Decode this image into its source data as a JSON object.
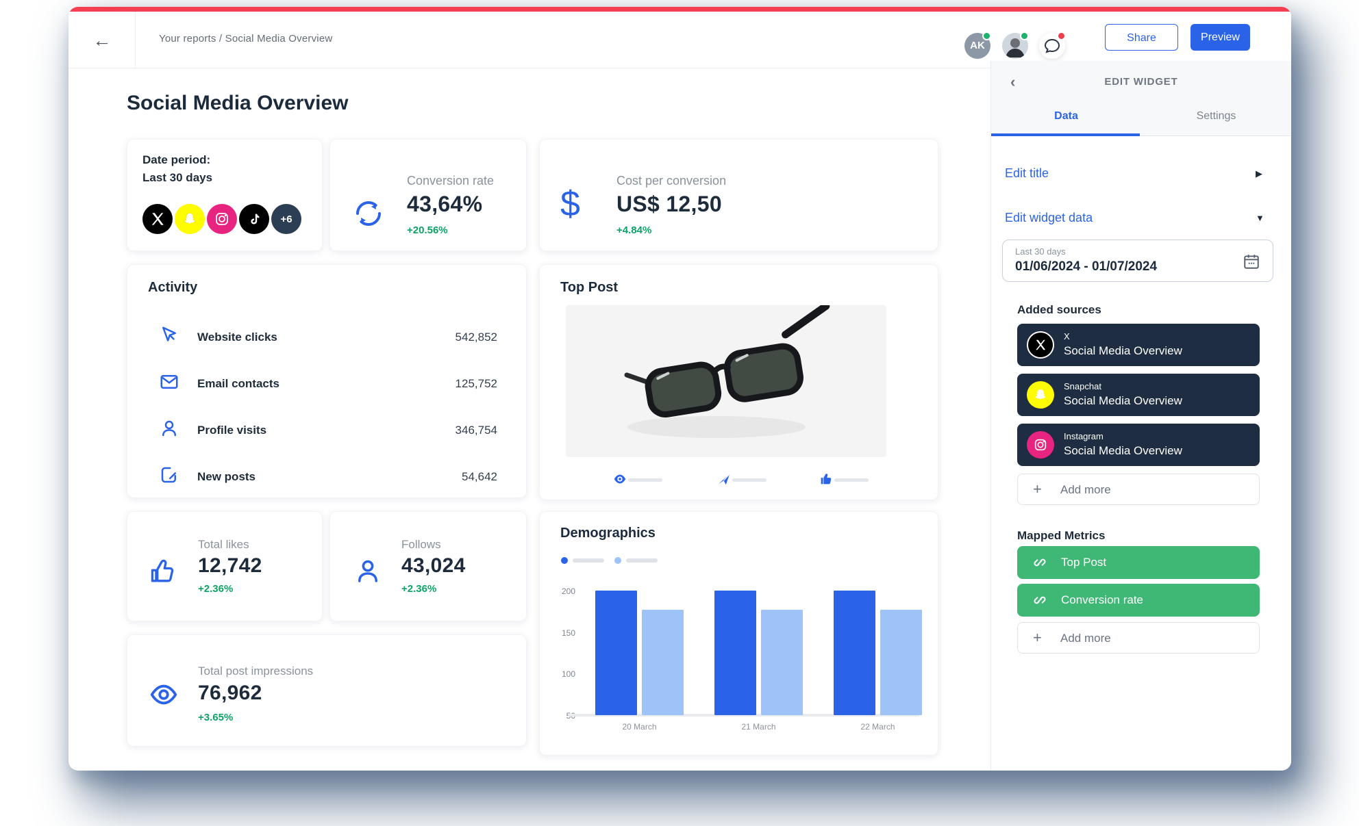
{
  "topbar": {
    "breadcrumb": "Your reports / Social Media Overview",
    "avatar_initials": "AK",
    "share_label": "Share",
    "preview_label": "Preview"
  },
  "report": {
    "title": "Social Media Overview"
  },
  "widgets": {
    "date_period": {
      "label": "Date period:",
      "value": "Last 30 days",
      "more_badge": "+6",
      "source_icons": [
        "x-icon",
        "snapchat-icon",
        "instagram-icon",
        "tiktok-icon"
      ]
    },
    "conversion_rate": {
      "label": "Conversion rate",
      "value": "43,64%",
      "change": "+20.56%"
    },
    "cost_per_conversion": {
      "label": "Cost per conversion",
      "value": "US$ 12,50",
      "change": "+4.84%"
    },
    "activity": {
      "title": "Activity",
      "rows": [
        {
          "label": "Website clicks",
          "value": "542,852"
        },
        {
          "label": "Email contacts",
          "value": "125,752"
        },
        {
          "label": "Profile visits",
          "value": "346,754"
        },
        {
          "label": "New posts",
          "value": "54,642"
        }
      ]
    },
    "top_post": {
      "title": "Top Post"
    },
    "total_likes": {
      "label": "Total likes",
      "value": "12,742",
      "change": "+2.36%"
    },
    "follows": {
      "label": "Follows",
      "value": "43,024",
      "change": "+2.36%"
    },
    "impressions": {
      "label": "Total post impressions",
      "value": "76,962",
      "change": "+3.65%"
    },
    "demographics": {
      "title": "Demographics"
    }
  },
  "chart_data": {
    "type": "bar",
    "title": "Demographics",
    "categories": [
      "20 March",
      "21 March",
      "22 March"
    ],
    "series": [
      {
        "name": "",
        "color": "#2b63e8",
        "values": [
          200,
          200,
          200
        ]
      },
      {
        "name": "",
        "color": "#9dc3f8",
        "values": [
          177,
          177,
          177
        ]
      }
    ],
    "yticks": [
      50,
      100,
      150,
      200
    ],
    "ylim": [
      50,
      200
    ],
    "legend_placeholder": true,
    "grid": false,
    "legend_position": "top-left"
  },
  "panel": {
    "title": "EDIT WIDGET",
    "tabs": [
      {
        "label": "Data",
        "active": true
      },
      {
        "label": "Settings",
        "active": false
      }
    ],
    "edit_title_label": "Edit title",
    "edit_widget_data_label": "Edit widget data",
    "date_field": {
      "label": "Last 30 days",
      "value": "01/06/2024 - 01/07/2024"
    },
    "added_sources_title": "Added sources",
    "sources": [
      {
        "network": "X",
        "report": "Social Media Overview"
      },
      {
        "network": "Snapchat",
        "report": "Social Media Overview"
      },
      {
        "network": "Instagram",
        "report": "Social Media Overview"
      }
    ],
    "add_sources_label": "Add more",
    "mapped_metrics_title": "Mapped Metrics",
    "metrics": [
      {
        "label": "Top Post"
      },
      {
        "label": "Conversion rate"
      }
    ],
    "add_metrics_label": "Add more"
  },
  "colors": {
    "accent_blue": "#2b63e8",
    "positive_green": "#0da365",
    "metric_green": "#3eb874",
    "source_navy": "#1e2d41",
    "topbar_red": "#f43f53",
    "chart_blue": "#2b63e8",
    "chart_light_blue": "#9dc3f8"
  }
}
